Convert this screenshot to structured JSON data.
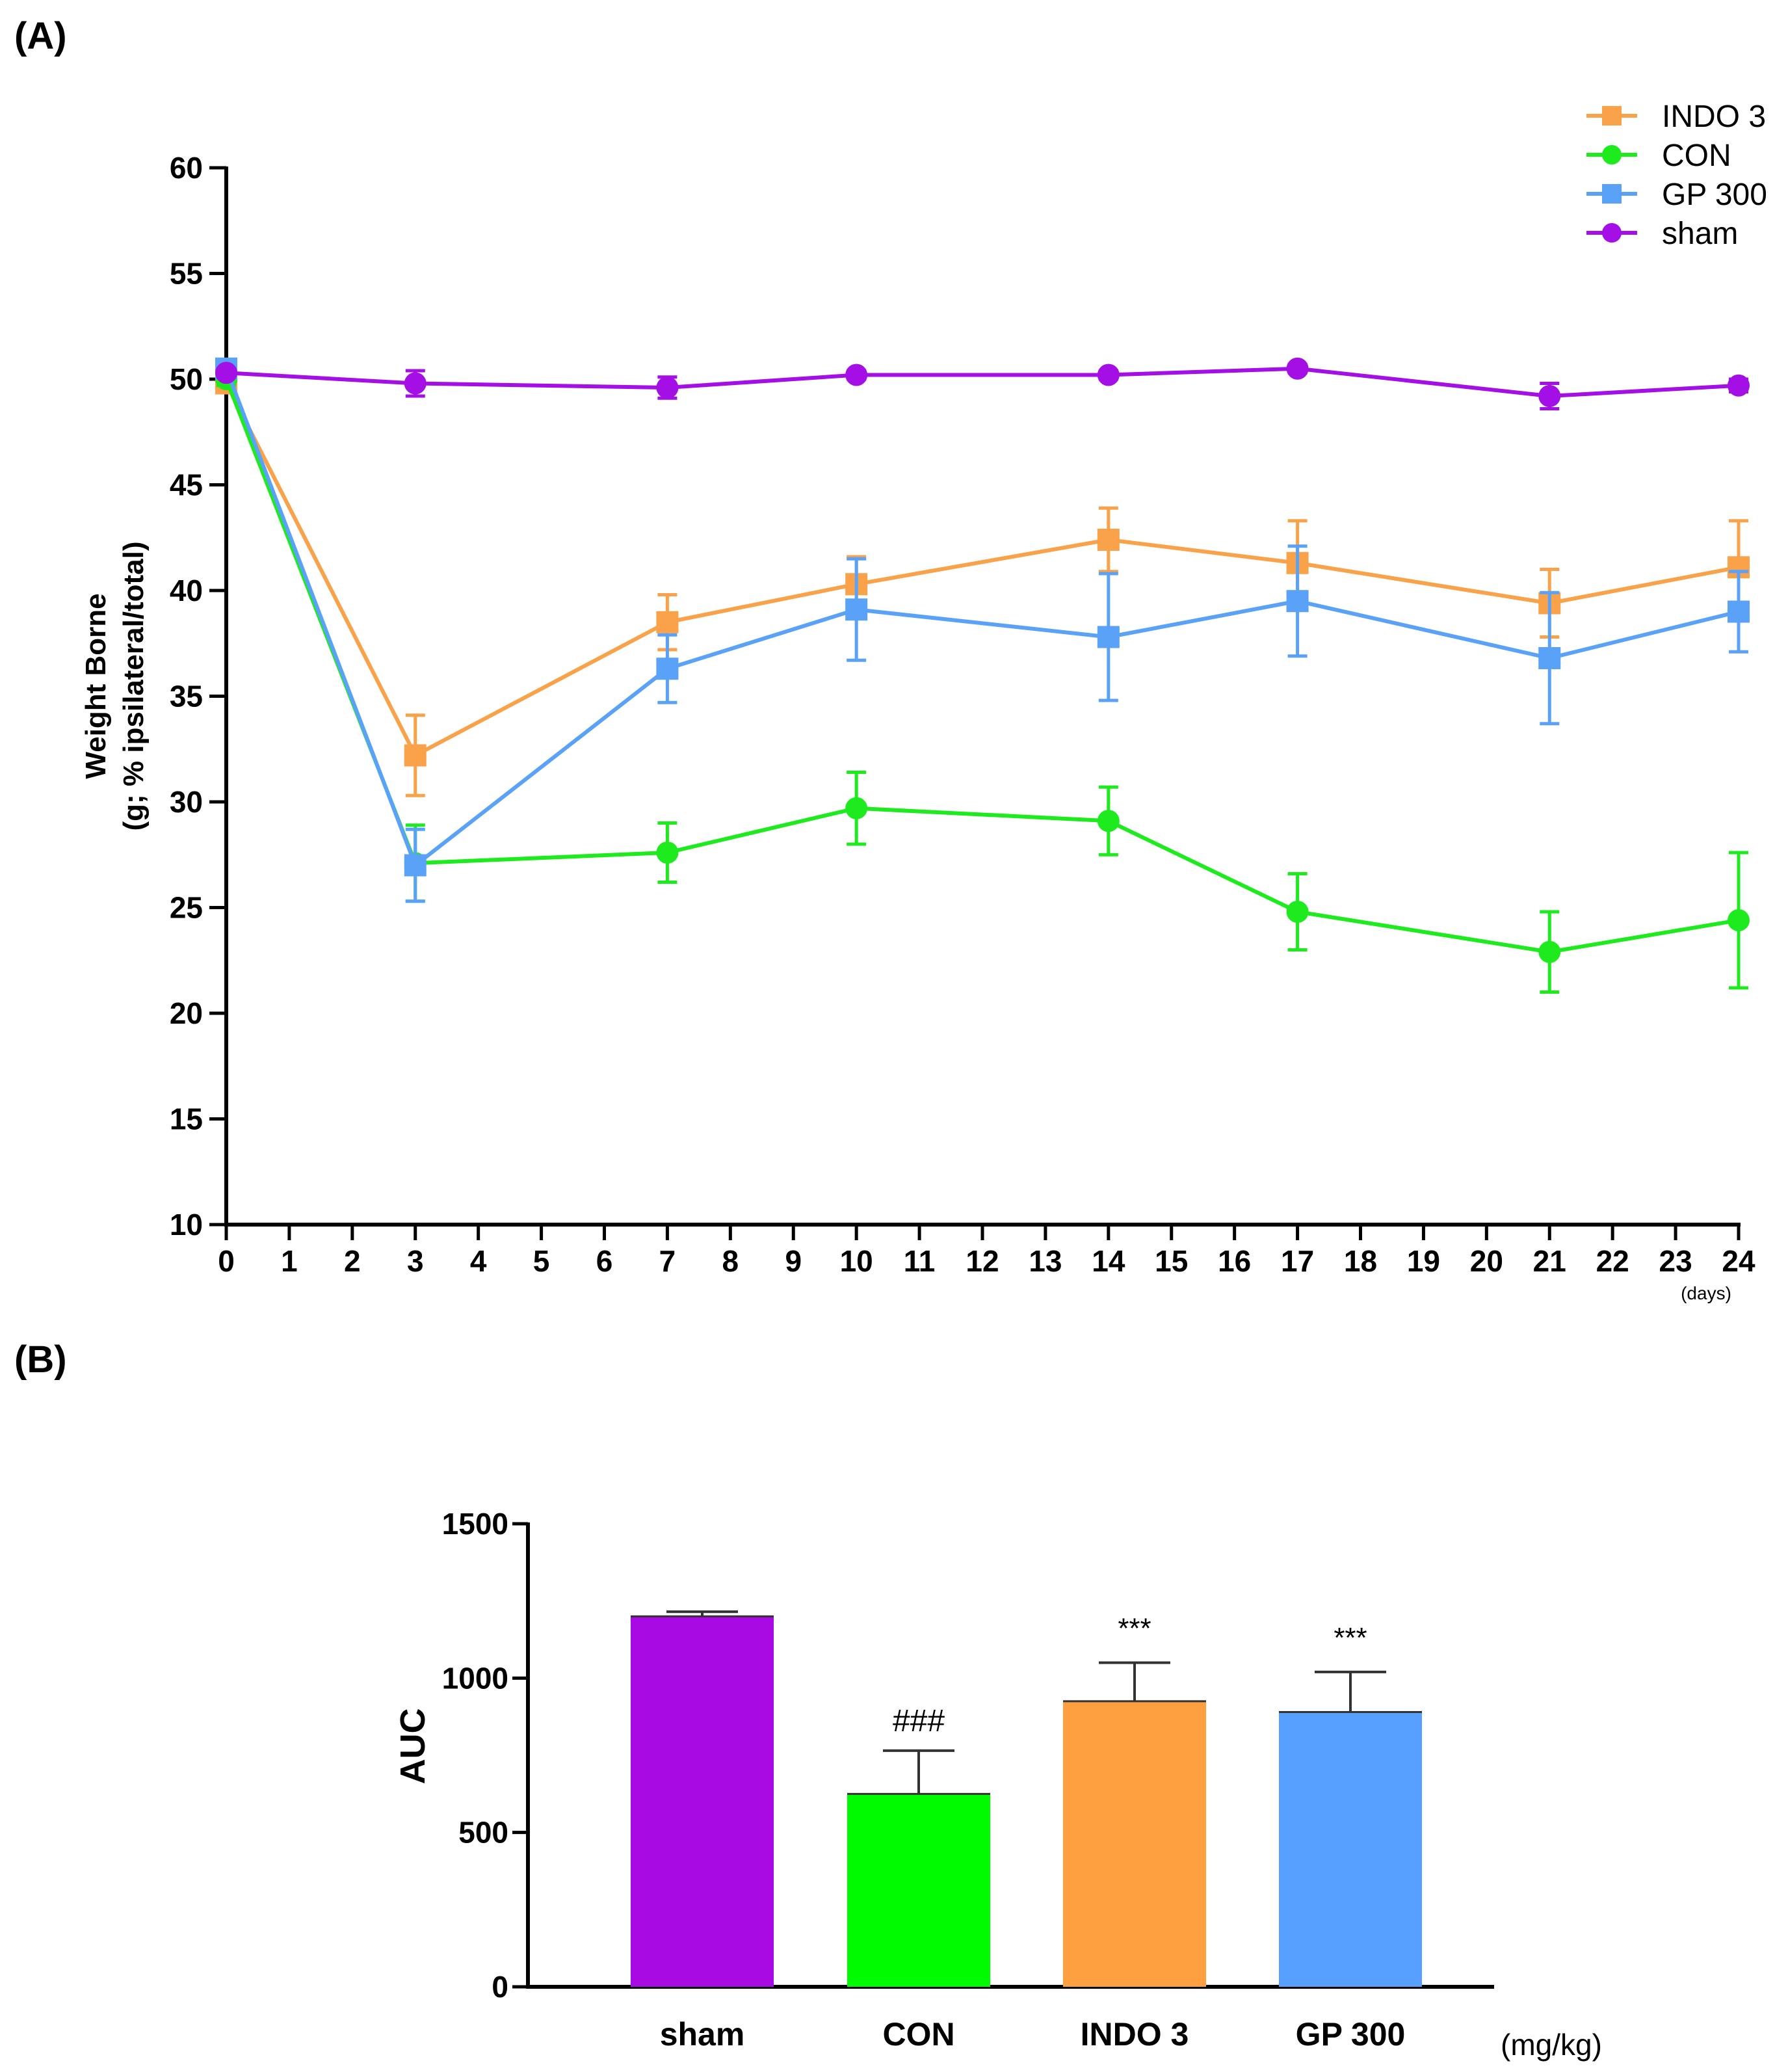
{
  "panels": {
    "a": "(A)",
    "b": "(B)"
  },
  "chart_data": [
    {
      "type": "line",
      "panel": "(A)",
      "title": "",
      "ylabel_line1": "Weight Borne",
      "ylabel_line2": "(g; % ipsilateral/total)",
      "xunit": "(days)",
      "ylim": [
        10,
        60
      ],
      "yticks": [
        10,
        15,
        20,
        25,
        30,
        35,
        40,
        45,
        50,
        55,
        60
      ],
      "xlim": [
        0,
        24
      ],
      "xticks": [
        0,
        1,
        2,
        3,
        4,
        5,
        6,
        7,
        8,
        9,
        10,
        11,
        12,
        13,
        14,
        15,
        16,
        17,
        18,
        19,
        20,
        21,
        22,
        23,
        24
      ],
      "legend": "top-right",
      "x": [
        0,
        3,
        7,
        10,
        14,
        17,
        21,
        24
      ],
      "series": [
        {
          "name": "INDO 3",
          "color": "#F9A24A",
          "marker": "square",
          "values": [
            49.8,
            32.2,
            38.5,
            40.3,
            42.4,
            41.3,
            39.4,
            41.1
          ],
          "errors": [
            0.3,
            1.9,
            1.3,
            1.3,
            1.5,
            2.0,
            1.6,
            2.2
          ]
        },
        {
          "name": "CON",
          "color": "#1EEB1E",
          "marker": "circle",
          "values": [
            50.0,
            27.1,
            27.6,
            29.7,
            29.1,
            24.8,
            22.9,
            24.4
          ],
          "errors": [
            0.3,
            1.8,
            1.4,
            1.7,
            1.6,
            1.8,
            1.9,
            3.2
          ]
        },
        {
          "name": "GP 300",
          "color": "#5AA2F7",
          "marker": "square",
          "values": [
            50.5,
            27.0,
            36.3,
            39.1,
            37.8,
            39.5,
            36.8,
            39.0
          ],
          "errors": [
            0.3,
            1.7,
            1.6,
            2.4,
            3.0,
            2.6,
            3.1,
            1.9
          ]
        },
        {
          "name": "sham",
          "color": "#A40FE6",
          "marker": "circle",
          "values": [
            50.3,
            49.8,
            49.6,
            50.2,
            50.2,
            50.5,
            49.2,
            49.7
          ],
          "errors": [
            0.2,
            0.6,
            0.5,
            0.2,
            0.2,
            0.2,
            0.6,
            0.3
          ]
        }
      ]
    },
    {
      "type": "bar",
      "panel": "(B)",
      "title": "",
      "ylabel": "AUC",
      "xunit": "(mg/kg)",
      "ylim": [
        0,
        1500
      ],
      "yticks": [
        0,
        500,
        1000,
        1500
      ],
      "categories": [
        "sham",
        "CON",
        "INDO 3",
        "GP 300"
      ],
      "values": [
        1200,
        625,
        925,
        890
      ],
      "errors": [
        15,
        140,
        125,
        130
      ],
      "colors": [
        "#A80AE4",
        "#00FB00",
        "#FEA03F",
        "#57A0FF"
      ],
      "annotations": [
        "",
        "###",
        "***",
        "***"
      ]
    }
  ]
}
